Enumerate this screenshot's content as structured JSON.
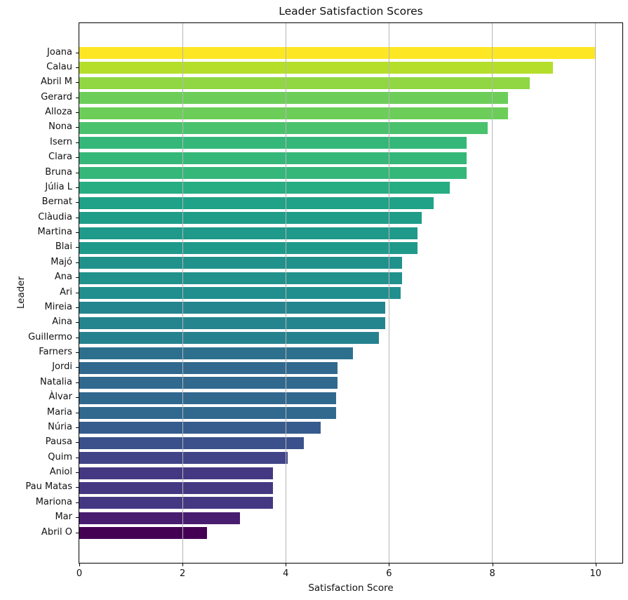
{
  "chart_data": {
    "type": "bar",
    "orientation": "horizontal",
    "title": "Leader Satisfaction Scores",
    "xlabel": "Satisfaction Score",
    "ylabel": "Leader",
    "xlim": [
      0,
      10.52
    ],
    "xticks": [
      0,
      2,
      4,
      6,
      8,
      10
    ],
    "grid": true,
    "grid_color": "#b6b6b6",
    "colormap": "viridis",
    "bars": [
      {
        "name": "Joana",
        "value": 10.0,
        "color": "#fde725"
      },
      {
        "name": "Calau",
        "value": 9.17,
        "color": "#b5de2b"
      },
      {
        "name": "Abril M",
        "value": 8.73,
        "color": "#90d743"
      },
      {
        "name": "Gerard",
        "value": 8.31,
        "color": "#6cce59"
      },
      {
        "name": "Alloza",
        "value": 8.31,
        "color": "#6cce59"
      },
      {
        "name": "Nona",
        "value": 7.91,
        "color": "#4ac16d"
      },
      {
        "name": "Isern",
        "value": 7.5,
        "color": "#35b779"
      },
      {
        "name": "Clara",
        "value": 7.5,
        "color": "#35b779"
      },
      {
        "name": "Bruna",
        "value": 7.5,
        "color": "#35b779"
      },
      {
        "name": "Júlia L",
        "value": 7.17,
        "color": "#27ad81"
      },
      {
        "name": "Bernat",
        "value": 6.86,
        "color": "#1fa287"
      },
      {
        "name": "Clàudia",
        "value": 6.63,
        "color": "#1f9d89"
      },
      {
        "name": "Martina",
        "value": 6.55,
        "color": "#1f998a"
      },
      {
        "name": "Blai",
        "value": 6.55,
        "color": "#1f998a"
      },
      {
        "name": "Majó",
        "value": 6.25,
        "color": "#21918c"
      },
      {
        "name": "Ana",
        "value": 6.25,
        "color": "#21918c"
      },
      {
        "name": "Ari",
        "value": 6.22,
        "color": "#218f8d"
      },
      {
        "name": "Mireia",
        "value": 5.93,
        "color": "#25858e"
      },
      {
        "name": "Aina",
        "value": 5.93,
        "color": "#25858e"
      },
      {
        "name": "Guillermo",
        "value": 5.8,
        "color": "#26818e"
      },
      {
        "name": "Farners",
        "value": 5.3,
        "color": "#2d708e"
      },
      {
        "name": "Jordi",
        "value": 5.0,
        "color": "#31688e"
      },
      {
        "name": "Natalia",
        "value": 5.0,
        "color": "#31688e"
      },
      {
        "name": "Àlvar",
        "value": 4.98,
        "color": "#31688e"
      },
      {
        "name": "Maria",
        "value": 4.98,
        "color": "#31688e"
      },
      {
        "name": "Núria",
        "value": 4.67,
        "color": "#365c8d"
      },
      {
        "name": "Pausa",
        "value": 4.35,
        "color": "#3b518b"
      },
      {
        "name": "Quim",
        "value": 4.04,
        "color": "#414487"
      },
      {
        "name": "Aniol",
        "value": 3.75,
        "color": "#453882"
      },
      {
        "name": "Pau Matas",
        "value": 3.75,
        "color": "#453882"
      },
      {
        "name": "Mariona",
        "value": 3.75,
        "color": "#453882"
      },
      {
        "name": "Mar",
        "value": 3.11,
        "color": "#481d6f"
      },
      {
        "name": "Abril O",
        "value": 2.47,
        "color": "#440154"
      }
    ]
  }
}
